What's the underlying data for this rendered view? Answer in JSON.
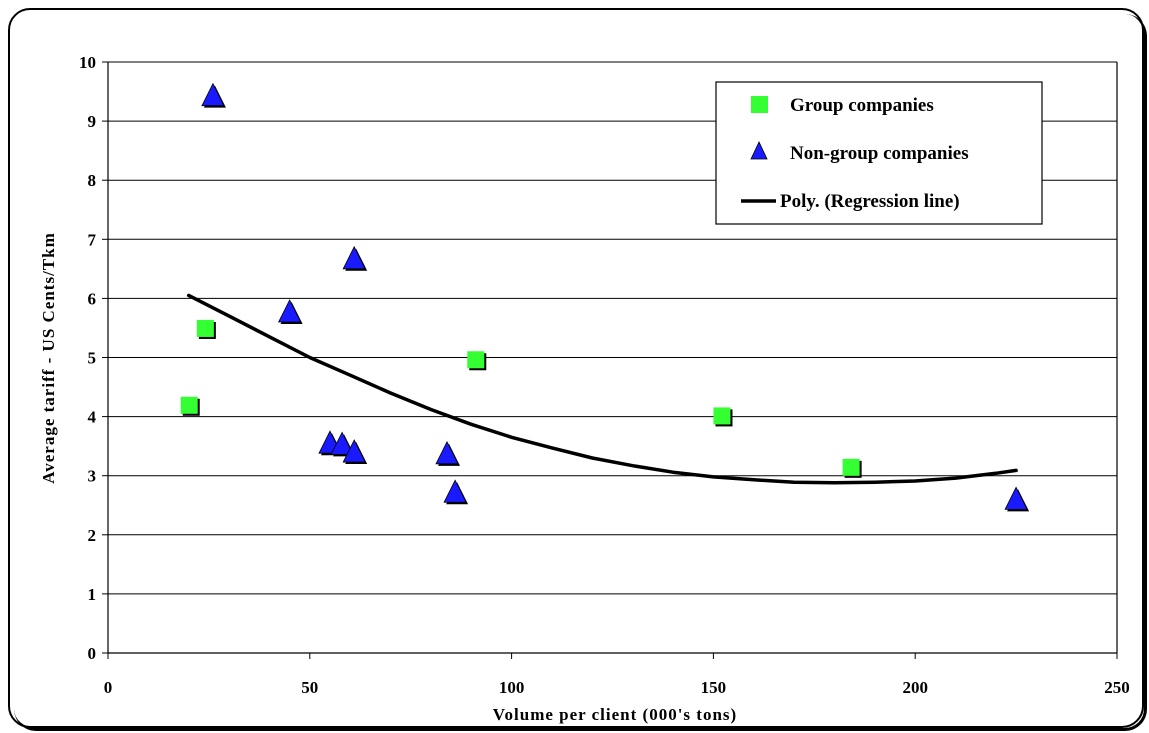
{
  "chart_data": {
    "type": "scatter",
    "title": "",
    "xlabel": "Volume per client (000's tons)",
    "ylabel": "Average tariff  - US Cents/Tkm",
    "xlim": [
      0,
      250
    ],
    "ylim": [
      0,
      10
    ],
    "x_ticks": [
      0,
      50,
      100,
      150,
      200,
      250
    ],
    "y_ticks": [
      0,
      1,
      2,
      3,
      4,
      5,
      6,
      7,
      8,
      9,
      10
    ],
    "grid": "horizontal",
    "legend_position": "top-right",
    "series": [
      {
        "name": "Group companies",
        "marker": "square",
        "color": "#33ff33",
        "points": [
          [
            20,
            4.2
          ],
          [
            24,
            5.5
          ],
          [
            91,
            4.97
          ],
          [
            152,
            4.02
          ],
          [
            184,
            3.15
          ]
        ]
      },
      {
        "name": "Non-group companies",
        "marker": "triangle",
        "color": "#1a1aff",
        "points": [
          [
            26,
            9.43
          ],
          [
            45,
            5.77
          ],
          [
            55,
            3.55
          ],
          [
            58,
            3.53
          ],
          [
            61,
            6.67
          ],
          [
            61,
            3.4
          ],
          [
            84,
            3.37
          ],
          [
            86,
            2.72
          ],
          [
            225,
            2.6
          ]
        ]
      },
      {
        "name": "Poly. (Regression line)",
        "type": "line",
        "color": "#000000",
        "points": [
          [
            20,
            6.05
          ],
          [
            30,
            5.7
          ],
          [
            40,
            5.35
          ],
          [
            50,
            5.0
          ],
          [
            60,
            4.7
          ],
          [
            70,
            4.4
          ],
          [
            80,
            4.12
          ],
          [
            90,
            3.87
          ],
          [
            100,
            3.65
          ],
          [
            110,
            3.47
          ],
          [
            120,
            3.3
          ],
          [
            130,
            3.17
          ],
          [
            140,
            3.06
          ],
          [
            150,
            2.98
          ],
          [
            160,
            2.93
          ],
          [
            170,
            2.89
          ],
          [
            180,
            2.88
          ],
          [
            190,
            2.89
          ],
          [
            200,
            2.91
          ],
          [
            210,
            2.96
          ],
          [
            220,
            3.04
          ],
          [
            225,
            3.09
          ]
        ]
      }
    ]
  }
}
